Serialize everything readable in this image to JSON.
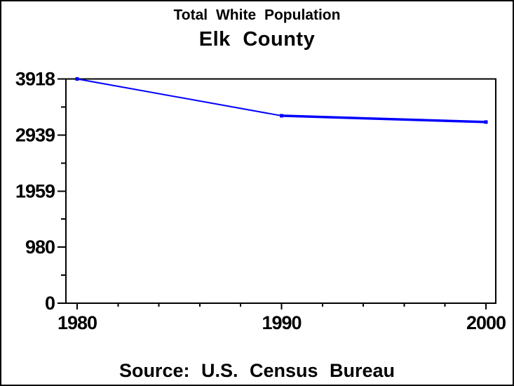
{
  "window": {
    "background": "#ffffff",
    "border_color": "#000000"
  },
  "header": {
    "title": "Total White Population",
    "subtitle": "Elk County"
  },
  "footer": {
    "source": "Source: U.S. Census Bureau"
  },
  "chart_data": {
    "type": "line",
    "title": "Total White Population",
    "subtitle": "Elk County",
    "source_note": "Source: U.S. Census Bureau",
    "x": [
      1980,
      1990,
      2000
    ],
    "series": [
      {
        "name": "Total White Population",
        "values": [
          3918,
          3275,
          3165
        ],
        "color": "#0000ff",
        "marker": "square"
      }
    ],
    "xlabel": "",
    "ylabel": "",
    "xlim": [
      1980,
      2000
    ],
    "ylim": [
      0,
      3918
    ],
    "xtick_values": [
      1980,
      1990,
      2000
    ],
    "xtick_labels": [
      "1980",
      "1990",
      "2000"
    ],
    "x_minor_step": 2,
    "ytick_values": [
      0,
      980,
      1959,
      2939,
      3918
    ],
    "ytick_labels": [
      "0",
      "980",
      "1959",
      "2939",
      "3918"
    ],
    "y_minor": "midpoints",
    "grid": false,
    "legend": "none",
    "axis_color": "#000000",
    "frame": true
  }
}
